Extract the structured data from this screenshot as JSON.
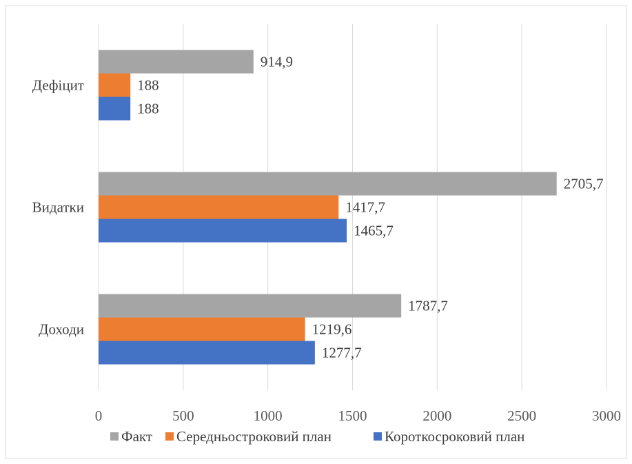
{
  "chart_data": {
    "type": "bar",
    "orientation": "horizontal",
    "categories": [
      "Дефіцит",
      "Видатки",
      "Доходи"
    ],
    "series": [
      {
        "name": "Факт",
        "color": "#a5a5a5",
        "values": [
          914.9,
          2705.7,
          1787.7
        ],
        "labels": [
          "914,9",
          "2705,7",
          "1787,7"
        ]
      },
      {
        "name": "Середньостроковий план",
        "color": "#ed7d31",
        "values": [
          188,
          1417.7,
          1219.6
        ],
        "labels": [
          "188",
          "1417,7",
          "1219,6"
        ]
      },
      {
        "name": "Короткосроковий план",
        "color": "#4472c4",
        "values": [
          188,
          1465.7,
          1277.7
        ],
        "labels": [
          "188",
          "1465,7",
          "1277,7"
        ]
      }
    ],
    "xlim": [
      0,
      3000
    ],
    "xticks": [
      0,
      500,
      1000,
      1500,
      2000,
      2500,
      3000
    ],
    "xtick_labels": [
      "0",
      "500",
      "1000",
      "1500",
      "2000",
      "2500",
      "3000"
    ],
    "grid": "vertical",
    "legend": "bottom"
  }
}
